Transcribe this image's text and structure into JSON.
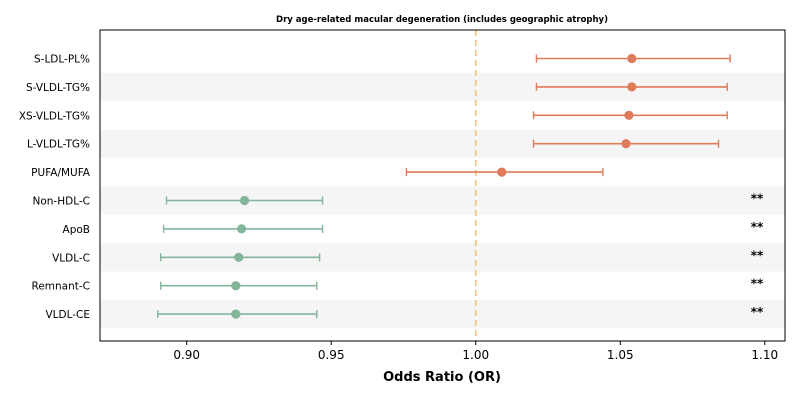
{
  "chart_data": {
    "type": "forest",
    "title": "Dry age-related macular degeneration (includes geographic atrophy)",
    "xlabel": "Odds Ratio (OR)",
    "xlim": [
      0.87,
      1.107
    ],
    "xticks": [
      "0.90",
      "0.95",
      "1.00",
      "1.05",
      "1.10"
    ],
    "xtick_values": [
      0.9,
      0.95,
      1.0,
      1.05,
      1.1
    ],
    "reference_line": 1.0,
    "reference_color": "#f2c27a",
    "band_color": "#f5f5f5",
    "colors": {
      "risk": "#e07b5a",
      "protective": "#82b59a"
    },
    "rows": [
      {
        "label": "S-LDL-PL%",
        "or": 1.054,
        "lo": 1.021,
        "hi": 1.088,
        "group": "risk",
        "sig": ""
      },
      {
        "label": "S-VLDL-TG%",
        "or": 1.054,
        "lo": 1.021,
        "hi": 1.087,
        "group": "risk",
        "sig": ""
      },
      {
        "label": "XS-VLDL-TG%",
        "or": 1.053,
        "lo": 1.02,
        "hi": 1.087,
        "group": "risk",
        "sig": ""
      },
      {
        "label": "L-VLDL-TG%",
        "or": 1.052,
        "lo": 1.02,
        "hi": 1.084,
        "group": "risk",
        "sig": ""
      },
      {
        "label": "PUFA/MUFA",
        "or": 1.009,
        "lo": 0.976,
        "hi": 1.044,
        "group": "risk",
        "sig": ""
      },
      {
        "label": "Non-HDL-C",
        "or": 0.92,
        "lo": 0.893,
        "hi": 0.947,
        "group": "protective",
        "sig": "**"
      },
      {
        "label": "ApoB",
        "or": 0.919,
        "lo": 0.892,
        "hi": 0.947,
        "group": "protective",
        "sig": "**"
      },
      {
        "label": "VLDL-C",
        "or": 0.918,
        "lo": 0.891,
        "hi": 0.946,
        "group": "protective",
        "sig": "**"
      },
      {
        "label": "Remnant-C",
        "or": 0.917,
        "lo": 0.891,
        "hi": 0.945,
        "group": "protective",
        "sig": "**"
      },
      {
        "label": "VLDL-CE",
        "or": 0.917,
        "lo": 0.89,
        "hi": 0.945,
        "group": "protective",
        "sig": "**"
      }
    ]
  }
}
